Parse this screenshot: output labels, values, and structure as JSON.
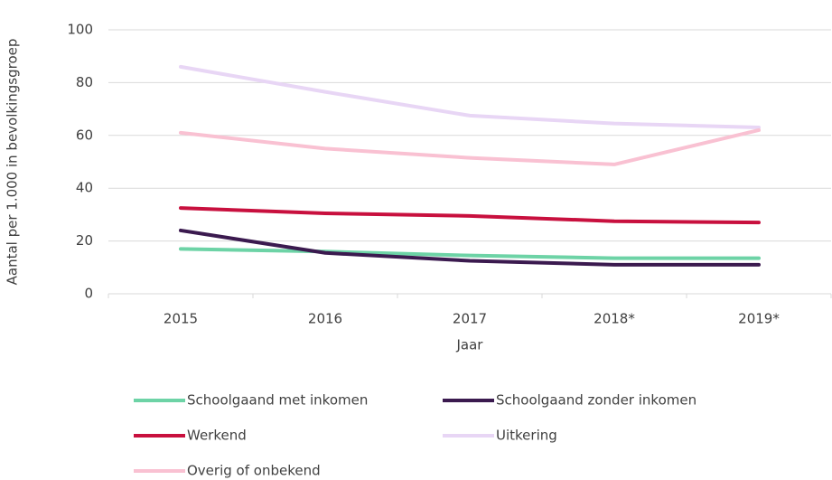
{
  "chart_data": {
    "type": "line",
    "x_label": "Jaar",
    "y_label": "Aantal per 1.000 in bevolkingsgroep",
    "categories": [
      "2015",
      "2016",
      "2017",
      "2018*",
      "2019*"
    ],
    "series": [
      {
        "name": "Schoolgaand met inkomen",
        "color": "#6dd3a6",
        "values": [
          17,
          16,
          14.5,
          13.5,
          13.5
        ]
      },
      {
        "name": "Schoolgaand zonder inkomen",
        "color": "#3b1a4f",
        "values": [
          24,
          15.5,
          12.5,
          11,
          11
        ]
      },
      {
        "name": "Werkend",
        "color": "#c8103e",
        "values": [
          32.5,
          30.5,
          29.5,
          27.5,
          27
        ]
      },
      {
        "name": "Uitkering",
        "color": "#e8d6f5",
        "values": [
          86,
          76.5,
          67.5,
          64.5,
          63
        ]
      },
      {
        "name": "Overig of onbekend",
        "color": "#f9c1d2",
        "values": [
          61,
          55,
          51.5,
          49,
          62
        ]
      }
    ],
    "ylim": [
      0,
      100
    ],
    "yticks": [
      0,
      20,
      40,
      60,
      80,
      100
    ],
    "grid": true,
    "legend": "bottom"
  }
}
